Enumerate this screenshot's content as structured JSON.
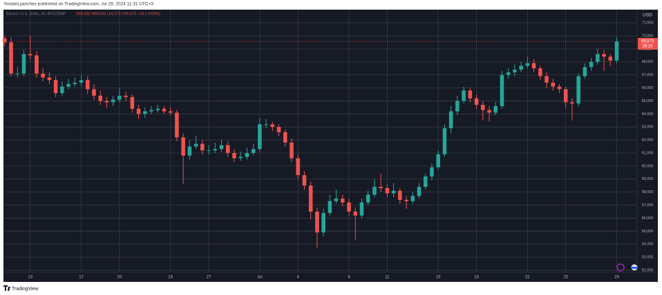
{
  "chart_data": {
    "type": "candlestick",
    "publisher": "YordanLyanchev published on TradingView.com, Jul 29, 2024 11:31 UTC+3",
    "symbol": "Bitcoin / U.S. Dollar, 30, BITSTAMP",
    "ohlc_legend": "O69,592 H69,592 L69,572 C69,573 −14 (−0.02%)",
    "currency": "USD",
    "brand": "TradingView",
    "up_color": "#26a69a",
    "down_color": "#ef5350",
    "grid": true,
    "last_price": {
      "value": 69573,
      "label": "69,573"
    },
    "countdown": "28:15",
    "xlim": [
      10.9,
      60.6
    ],
    "xticks": [
      13,
      17,
      20,
      24,
      27,
      {
        "value": 31,
        "label": "Jul"
      },
      {
        "value": 34,
        "label": "4"
      },
      {
        "value": 38,
        "label": "8"
      },
      {
        "value": 41,
        "label": "11"
      },
      {
        "value": 45,
        "label": "15"
      },
      {
        "value": 48,
        "label": "18"
      },
      {
        "value": 52,
        "label": "22"
      },
      {
        "value": 55,
        "label": "25"
      },
      {
        "value": 59,
        "label": "29"
      }
    ],
    "ylim": [
      51840,
      72010
    ],
    "yticks": [
      {
        "value": 52000,
        "label": "52,000"
      },
      {
        "value": 53000,
        "label": "53,000"
      },
      {
        "value": 54000,
        "label": "54,000"
      },
      {
        "value": 55000,
        "label": "55,000"
      },
      {
        "value": 56000,
        "label": "56,000"
      },
      {
        "value": 57000,
        "label": "57,000"
      },
      {
        "value": 58000,
        "label": "58,000"
      },
      {
        "value": 59000,
        "label": "59,000"
      },
      {
        "value": 60000,
        "label": "60,000"
      },
      {
        "value": 61000,
        "label": "61,000"
      },
      {
        "value": 62000,
        "label": "62,000"
      },
      {
        "value": 63000,
        "label": "63,000"
      },
      {
        "value": 64000,
        "label": "64,000"
      },
      {
        "value": 65000,
        "label": "65,000"
      },
      {
        "value": 66000,
        "label": "66,000"
      },
      {
        "value": 67000,
        "label": "67,000"
      },
      {
        "value": 68000,
        "label": "68,000"
      },
      {
        "value": 69000,
        "label": "69,000"
      },
      {
        "value": 70000,
        "label": "70,000"
      },
      {
        "value": 71000,
        "label": "71,000"
      }
    ],
    "x": [
      11,
      11.5,
      12,
      12.5,
      13,
      13.5,
      14,
      14.5,
      15,
      15.5,
      16,
      16.5,
      17,
      17.5,
      18,
      18.5,
      19,
      19.5,
      20,
      20.5,
      21,
      21.5,
      22,
      22.5,
      23,
      23.5,
      24,
      24.5,
      25,
      25.5,
      26,
      26.5,
      27,
      27.5,
      28,
      28.5,
      29,
      29.5,
      30,
      30.5,
      31,
      31.5,
      32,
      32.5,
      33,
      33.5,
      34,
      34.5,
      35,
      35.5,
      36,
      36.5,
      37,
      37.5,
      38,
      38.5,
      39,
      39.5,
      40,
      40.5,
      41,
      41.5,
      42,
      42.5,
      43,
      43.5,
      44,
      44.5,
      45,
      45.5,
      46,
      46.5,
      47,
      47.5,
      48,
      48.5,
      49,
      49.5,
      50,
      50.5,
      51,
      51.5,
      52,
      52.5,
      53,
      53.5,
      54,
      54.5,
      55,
      55.5,
      56,
      56.5,
      57,
      57.5,
      58,
      58.5,
      59
    ],
    "open": [
      69800,
      69500,
      67100,
      67100,
      68600,
      68500,
      67100,
      66800,
      66600,
      65600,
      66100,
      66300,
      66400,
      66600,
      65900,
      65400,
      65000,
      64900,
      65100,
      65400,
      65300,
      64400,
      64000,
      64200,
      64300,
      64400,
      64200,
      64100,
      62200,
      60800,
      61500,
      61700,
      61200,
      61200,
      61300,
      61600,
      61000,
      60600,
      60700,
      61000,
      61300,
      63200,
      63200,
      63000,
      62600,
      61800,
      60600,
      59300,
      58500,
      56500,
      54900,
      56400,
      57300,
      57500,
      57200,
      56500,
      56200,
      57200,
      57800,
      58400,
      58300,
      57900,
      58100,
      57400,
      57300,
      57700,
      58400,
      59200,
      59900,
      60900,
      62900,
      64200,
      65000,
      65800,
      65200,
      64700,
      64300,
      64100,
      64600,
      67000,
      67200,
      67400,
      67700,
      67900,
      67500,
      66900,
      66400,
      66100,
      65900,
      64900,
      64800,
      66900,
      67600,
      68000,
      68600,
      68400,
      68100
    ],
    "high": [
      70000,
      69900,
      67600,
      68900,
      70000,
      68800,
      67500,
      67200,
      66900,
      66500,
      66700,
      66800,
      67000,
      66900,
      66300,
      65800,
      65300,
      65400,
      66000,
      65700,
      65500,
      64700,
      64500,
      64600,
      64700,
      64600,
      64500,
      64300,
      62500,
      62000,
      62300,
      62000,
      61600,
      61800,
      62000,
      61900,
      61300,
      61100,
      61400,
      61700,
      63700,
      63600,
      63400,
      63200,
      62800,
      62100,
      60900,
      59600,
      58800,
      56800,
      56700,
      57800,
      58200,
      57800,
      57500,
      56800,
      57500,
      58100,
      59000,
      59400,
      58600,
      58700,
      58300,
      57700,
      58000,
      58700,
      59400,
      60200,
      61200,
      63200,
      64600,
      65400,
      66100,
      66000,
      65500,
      65000,
      64600,
      64900,
      67300,
      67500,
      67800,
      68000,
      68400,
      68200,
      67700,
      67200,
      66700,
      66300,
      66100,
      65200,
      67100,
      67900,
      68300,
      69000,
      68900,
      68600,
      69900
    ],
    "low": [
      69200,
      66900,
      66800,
      66900,
      68200,
      66800,
      66500,
      66300,
      65300,
      65400,
      65900,
      66100,
      66100,
      65500,
      65100,
      64700,
      64500,
      64600,
      64900,
      65000,
      64100,
      63600,
      63700,
      64000,
      64100,
      64000,
      63900,
      61900,
      58600,
      60500,
      61300,
      60900,
      60900,
      61000,
      61100,
      60700,
      60300,
      60400,
      60500,
      60800,
      61100,
      62900,
      62700,
      62300,
      61500,
      60300,
      59000,
      58200,
      55900,
      53700,
      54600,
      56200,
      57100,
      56900,
      56200,
      54300,
      56000,
      57000,
      57600,
      58000,
      57600,
      57600,
      57100,
      56700,
      57100,
      57500,
      58200,
      58900,
      59700,
      60700,
      62500,
      63900,
      64800,
      64900,
      64400,
      63500,
      63400,
      63900,
      64400,
      66700,
      66900,
      67200,
      67500,
      67200,
      66600,
      66000,
      65800,
      65600,
      64500,
      63500,
      64600,
      66700,
      67300,
      67800,
      67300,
      67700,
      67900
    ],
    "close": [
      69500,
      67100,
      67100,
      68600,
      68500,
      67100,
      66800,
      66600,
      65600,
      66100,
      66300,
      66400,
      66600,
      65900,
      65400,
      65000,
      64900,
      65100,
      65400,
      65300,
      64400,
      64000,
      64200,
      64300,
      64400,
      64200,
      64100,
      62200,
      60800,
      61500,
      61700,
      61200,
      61200,
      61300,
      61600,
      61000,
      60600,
      60700,
      61000,
      61300,
      63200,
      63200,
      63000,
      62600,
      61800,
      60600,
      59300,
      58500,
      56500,
      54900,
      56400,
      57300,
      57500,
      57200,
      56500,
      56200,
      57200,
      57800,
      58400,
      58300,
      57900,
      58100,
      57400,
      57300,
      57700,
      58400,
      59200,
      59900,
      60900,
      62900,
      64200,
      65000,
      65800,
      65200,
      64700,
      64300,
      64100,
      64600,
      67000,
      67200,
      67400,
      67700,
      67900,
      67500,
      66900,
      66400,
      66100,
      65900,
      64900,
      64800,
      66900,
      67600,
      68000,
      68600,
      68400,
      68100,
      69573
    ]
  }
}
